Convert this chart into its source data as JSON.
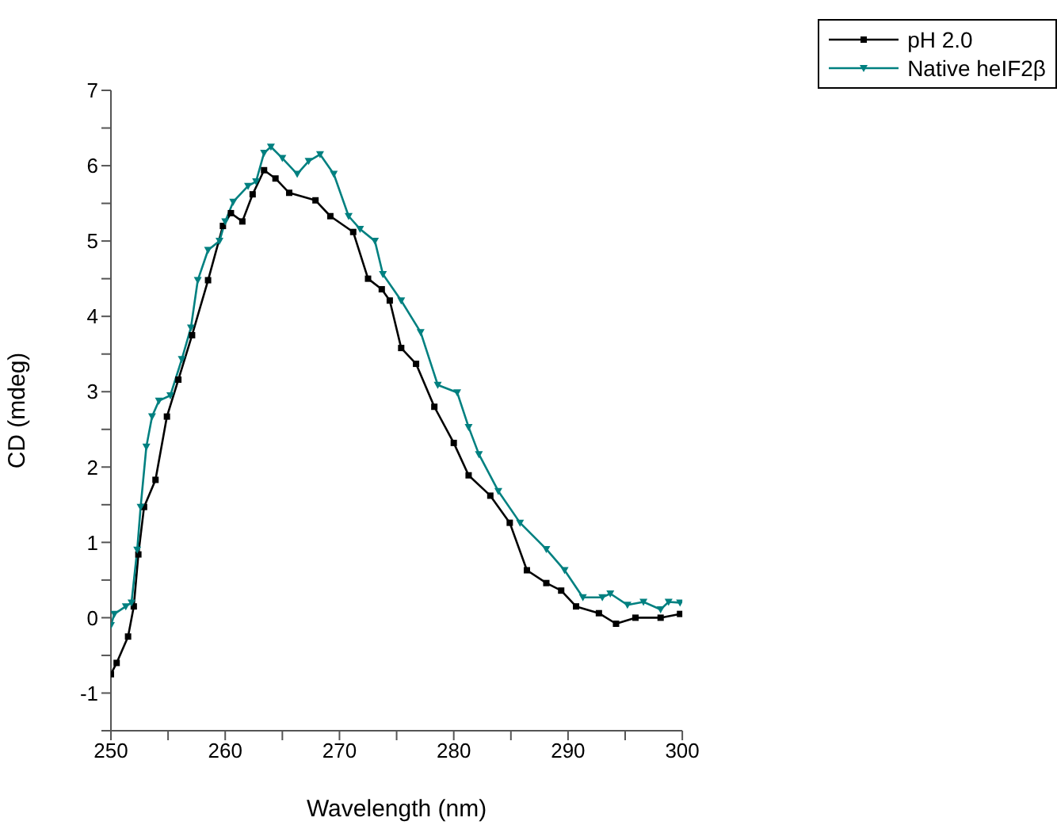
{
  "chart_data": {
    "type": "line",
    "xlabel": "Wavelength (nm)",
    "ylabel": "CD (mdeg)",
    "xlim": [
      250,
      300
    ],
    "ylim": [
      -1.5,
      7
    ],
    "xticks": [
      250,
      {
        "value": 255,
        "label": null
      },
      260,
      {
        "value": 265,
        "label": null
      },
      270,
      {
        "value": 275,
        "label": null
      },
      280,
      {
        "value": 285,
        "label": null
      },
      290,
      {
        "value": 295,
        "label": null
      },
      300
    ],
    "yticks": [
      {
        "value": -1.5,
        "label": null
      },
      -1,
      {
        "value": -0.5,
        "label": null
      },
      0,
      {
        "value": 0.5,
        "label": null
      },
      1,
      {
        "value": 1.5,
        "label": null
      },
      2,
      {
        "value": 2.5,
        "label": null
      },
      3,
      {
        "value": 3.5,
        "label": null
      },
      4,
      {
        "value": 4.5,
        "label": null
      },
      5,
      {
        "value": 5.5,
        "label": null
      },
      6,
      {
        "value": 6.5,
        "label": null
      },
      7
    ],
    "legend": "top right",
    "grid": false,
    "series": [
      {
        "name": "pH 2.0",
        "color": "#000000",
        "marker": "square",
        "x": [
          250,
          250.5,
          251.5,
          252,
          252.4,
          252.9,
          253.9,
          254.9,
          255.9,
          257.1,
          258.5,
          259.8,
          260.5,
          261.5,
          262.4,
          263.4,
          264.4,
          265.6,
          267.9,
          269.2,
          271.2,
          272.5,
          273.7,
          274.4,
          275.4,
          276.7,
          278.3,
          280,
          281.3,
          283.2,
          284.9,
          286.4,
          288.1,
          289.4,
          290.7,
          292.7,
          294.2,
          295.9,
          298.1,
          299.8
        ],
        "values": [
          -0.75,
          -0.6,
          -0.25,
          0.15,
          0.84,
          1.47,
          1.83,
          2.67,
          3.16,
          3.75,
          4.48,
          5.2,
          5.37,
          5.26,
          5.62,
          5.94,
          5.83,
          5.64,
          5.54,
          5.33,
          5.12,
          4.5,
          4.36,
          4.21,
          3.58,
          3.37,
          2.8,
          2.32,
          1.89,
          1.62,
          1.26,
          0.63,
          0.46,
          0.36,
          0.15,
          0.06,
          -0.08,
          0,
          0,
          0.05
        ]
      },
      {
        "name": "Native heIF2β",
        "color": "#008080",
        "marker": "triangle",
        "x": [
          250,
          250.3,
          251.3,
          251.8,
          252.3,
          252.6,
          253.1,
          253.6,
          254.2,
          255.2,
          256.2,
          257,
          257.6,
          258.5,
          259.5,
          260,
          260.7,
          262,
          262.7,
          263.4,
          264,
          265,
          266.3,
          267.3,
          268.3,
          269.5,
          270.8,
          271.8,
          273.1,
          273.8,
          275.4,
          277.1,
          278.6,
          280.3,
          281.3,
          282.2,
          283.9,
          285.8,
          288.1,
          289.7,
          291.3,
          293,
          293.7,
          295.2,
          296.6,
          298.1,
          298.8,
          299.8
        ],
        "values": [
          -0.1,
          0.05,
          0.15,
          0.2,
          0.9,
          1.47,
          2.27,
          2.67,
          2.88,
          2.95,
          3.43,
          3.85,
          4.48,
          4.88,
          5.0,
          5.26,
          5.52,
          5.73,
          5.79,
          6.17,
          6.25,
          6.1,
          5.89,
          6.06,
          6.15,
          5.89,
          5.33,
          5.16,
          5.0,
          4.56,
          4.21,
          3.79,
          3.09,
          2.99,
          2.53,
          2.17,
          1.68,
          1.26,
          0.91,
          0.63,
          0.27,
          0.27,
          0.32,
          0.17,
          0.21,
          0.11,
          0.21,
          0.2
        ]
      }
    ]
  }
}
